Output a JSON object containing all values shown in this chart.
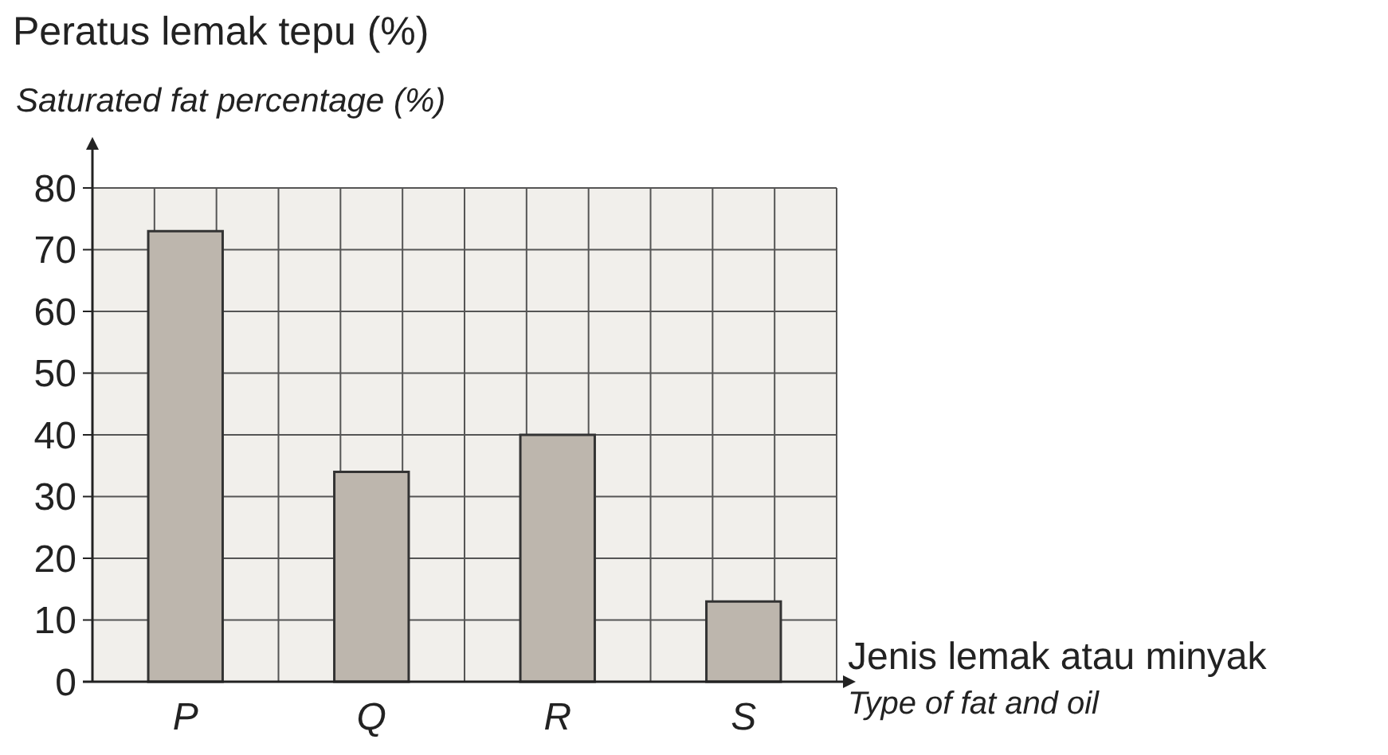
{
  "chart_data": {
    "type": "bar",
    "title": "Peratus lemak tepu (%)",
    "subtitle": "Saturated fat percentage (%)",
    "xlabel": "Jenis lemak atau minyak",
    "annotations": [
      "Type of fat and oil"
    ],
    "categories": [
      "P",
      "Q",
      "R",
      "S"
    ],
    "values": [
      73,
      34,
      40,
      13
    ],
    "color": "#bdb6ad",
    "ylim": [
      0,
      80
    ],
    "yticks": [
      0,
      10,
      20,
      30,
      40,
      50,
      60,
      70,
      80
    ],
    "grid": true
  }
}
